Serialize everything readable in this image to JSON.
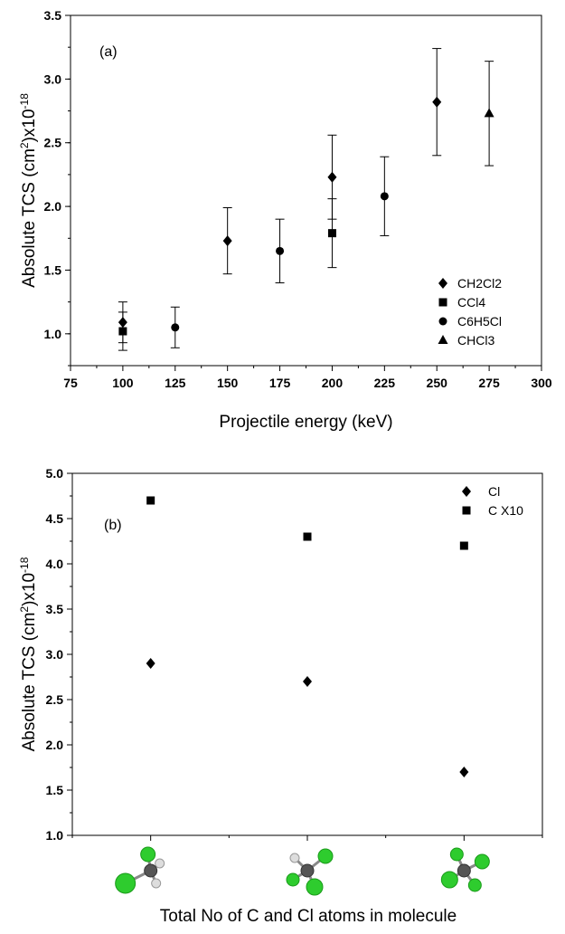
{
  "chart_data": [
    {
      "type": "scatter",
      "panel_label": "(a)",
      "xlabel": "Projectile energy (keV)",
      "ylabel_parts": {
        "pre": "Absolute TCS (cm",
        "sup1": "2",
        "mid": ")x10",
        "sup2": "-18"
      },
      "xlim": [
        75,
        300
      ],
      "ylim": [
        0.75,
        3.5
      ],
      "xticks": [
        "75",
        "100",
        "125",
        "150",
        "175",
        "200",
        "225",
        "250",
        "275",
        "300"
      ],
      "yticks": [
        "1.0",
        "1.5",
        "2.0",
        "2.5",
        "3.0",
        "3.5"
      ],
      "legend_position": "bottom-right",
      "series": [
        {
          "name": "CH2Cl2",
          "marker": "diamond",
          "points": [
            {
              "x": 100,
              "y": 1.09,
              "err": 0.16
            },
            {
              "x": 150,
              "y": 1.73,
              "err": 0.26
            },
            {
              "x": 200,
              "y": 2.23,
              "err": 0.33
            },
            {
              "x": 250,
              "y": 2.82,
              "err": 0.42
            }
          ]
        },
        {
          "name": "CCl4",
          "marker": "square",
          "points": [
            {
              "x": 100,
              "y": 1.02,
              "err": 0.15
            },
            {
              "x": 200,
              "y": 1.79,
              "err": 0.27
            }
          ]
        },
        {
          "name": "C6H5Cl",
          "marker": "circle",
          "points": [
            {
              "x": 125,
              "y": 1.05,
              "err": 0.16
            },
            {
              "x": 175,
              "y": 1.65,
              "err": 0.25
            },
            {
              "x": 225,
              "y": 2.08,
              "err": 0.31
            }
          ]
        },
        {
          "name": "CHCl3",
          "marker": "triangle",
          "points": [
            {
              "x": 275,
              "y": 2.73,
              "err": 0.41
            }
          ]
        }
      ]
    },
    {
      "type": "scatter",
      "panel_label": "(b)",
      "xlabel": "Total No of C and Cl atoms in molecule",
      "ylabel_parts": {
        "pre": "Absolute TCS (cm",
        "sup1": "2",
        "mid": ")x10",
        "sup2": "-18"
      },
      "ylim": [
        1.0,
        5.0
      ],
      "yticks": [
        "1.0",
        "1.5",
        "2.0",
        "2.5",
        "3.0",
        "3.5",
        "4.0",
        "4.5",
        "5.0"
      ],
      "categories": [
        "CH2Cl2",
        "CHCl3",
        "CCl4"
      ],
      "legend_position": "top-right",
      "series": [
        {
          "name": "Cl",
          "marker": "diamond",
          "values": [
            2.9,
            2.7,
            1.7
          ]
        },
        {
          "name": "C X10",
          "marker": "square",
          "values": [
            4.7,
            4.3,
            4.2
          ]
        }
      ]
    }
  ],
  "molecule_icons": [
    {
      "name": "CH2Cl2",
      "atoms": [
        "C",
        "Cl",
        "Cl",
        "H",
        "H"
      ]
    },
    {
      "name": "CHCl3",
      "atoms": [
        "C",
        "Cl",
        "Cl",
        "Cl",
        "H"
      ]
    },
    {
      "name": "CCl4",
      "atoms": [
        "C",
        "Cl",
        "Cl",
        "Cl",
        "Cl"
      ]
    }
  ],
  "colors": {
    "axis": "#000000",
    "chlorine": "#2ecc2e",
    "carbon": "#555555",
    "hydrogen": "#dddddd"
  }
}
